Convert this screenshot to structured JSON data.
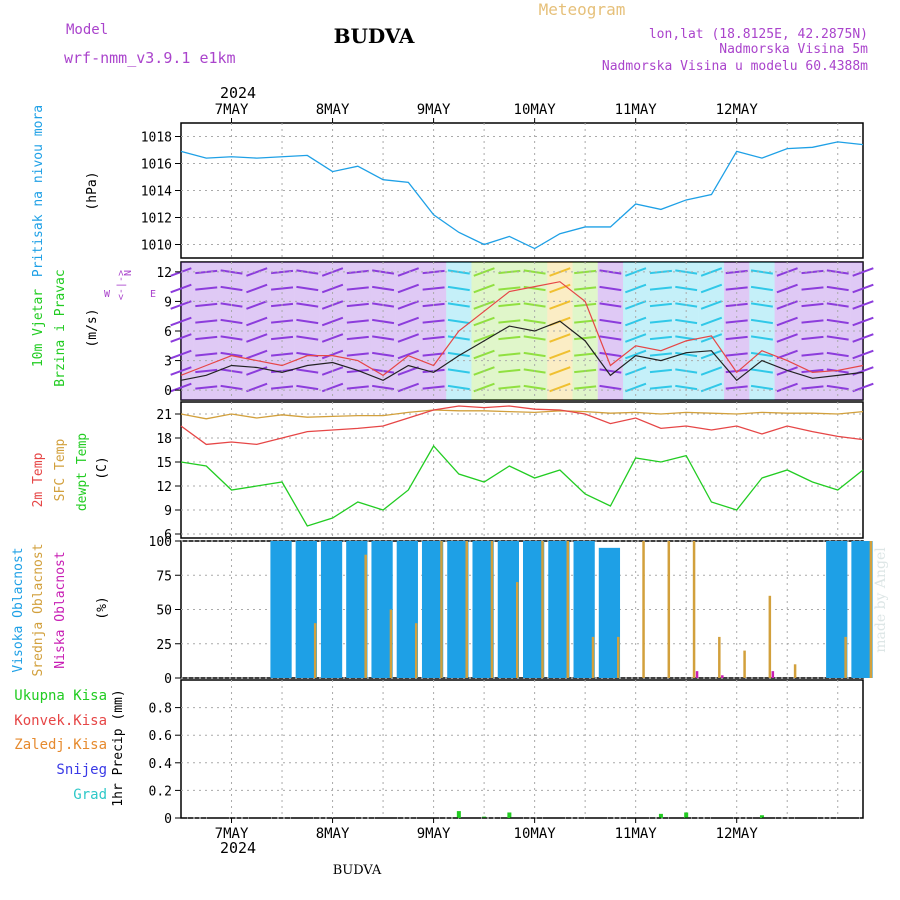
{
  "header": {
    "station": "BUDVA",
    "model_label": "Model",
    "model_name": "wrf-nmm_v3.9.1 e1km",
    "meteogram_label": "Meteogram",
    "coords": "lon,lat (18.8125E, 42.2875N)",
    "elevation": "Nadmorska Visina 5m",
    "model_elevation": "Nadmorska Visina u modelu 60.4388m",
    "year": "2024",
    "footer_station": "BUDVA",
    "watermark": "made by Angel"
  },
  "colors": {
    "pressure": "#1ea0e6",
    "t2m": "#e64646",
    "sfc": "#d2a03c",
    "dew": "#22cc22",
    "high_cloud": "#1ea0e6",
    "mid_cloud": "#d2a03c",
    "low_cloud": "#c81eb4",
    "header_purple": "#aa44cc",
    "meteogram": "#e6c07a"
  },
  "chart_data": [
    {
      "type": "line",
      "panel": "pressure",
      "ylabel": [
        "Pritisak na nivou mora",
        "(hPa)"
      ],
      "ylim": [
        1009,
        1019
      ],
      "yticks": [
        "1010",
        "1012",
        "1014",
        "1016",
        "1018"
      ],
      "x_unit": "hours since 7MAY 00 UTC",
      "x": [
        -12,
        -6,
        0,
        6,
        12,
        18,
        24,
        30,
        36,
        42,
        48,
        54,
        60,
        66,
        72,
        78,
        84,
        90,
        96,
        102,
        108,
        114,
        120,
        126,
        132,
        138,
        144,
        150
      ],
      "series": [
        {
          "name": "Pritisak na nivou mora",
          "values": [
            1016.9,
            1016.4,
            1016.5,
            1016.4,
            1016.5,
            1016.6,
            1015.4,
            1015.8,
            1014.8,
            1014.6,
            1012.2,
            1010.9,
            1010.0,
            1010.6,
            1009.7,
            1010.8,
            1011.3,
            1011.3,
            1013.0,
            1012.6,
            1013.3,
            1013.7,
            1016.9,
            1016.4,
            1017.1,
            1017.2,
            1017.6,
            1017.4
          ]
        }
      ]
    },
    {
      "type": "line",
      "panel": "wind",
      "ylabel": [
        "10m Vjetar",
        "Brzina i Pravac",
        "(m/s)"
      ],
      "compass": "N",
      "ylim": [
        -1,
        13
      ],
      "yticks": [
        "0",
        "3",
        "6",
        "9",
        "12"
      ],
      "x_unit": "hours since 7MAY 00 UTC",
      "x": [
        -12,
        -6,
        0,
        6,
        12,
        18,
        24,
        30,
        36,
        42,
        48,
        54,
        60,
        66,
        72,
        78,
        84,
        90,
        96,
        102,
        108,
        114,
        120,
        126,
        132,
        138,
        144,
        150
      ],
      "series": [
        {
          "name": "10m Vjetar",
          "values": [
            1.0,
            1.5,
            2.5,
            2.3,
            1.8,
            2.5,
            2.8,
            2.0,
            1.0,
            2.5,
            1.8,
            3.5,
            5.0,
            6.5,
            6.0,
            7.0,
            5.0,
            1.5,
            3.5,
            3.0,
            3.8,
            4.0,
            1.0,
            3.0,
            2.0,
            1.2,
            1.5,
            1.8
          ]
        },
        {
          "name": "gust",
          "values": [
            1.5,
            2.5,
            3.5,
            3.0,
            2.5,
            3.5,
            3.5,
            3.0,
            1.5,
            3.5,
            2.5,
            6.0,
            8.0,
            10.0,
            10.5,
            11.0,
            9.0,
            2.5,
            4.5,
            4.0,
            5.0,
            5.5,
            1.8,
            4.0,
            3.0,
            1.8,
            2.0,
            2.5
          ]
        }
      ]
    },
    {
      "type": "line",
      "panel": "temperature",
      "ylabel": [
        "2m Temp",
        "SFC Temp",
        "dewpt Temp",
        "(C)"
      ],
      "ylim": [
        5.5,
        22.5
      ],
      "yticks": [
        "6",
        "9",
        "12",
        "15",
        "18",
        "21"
      ],
      "x_unit": "hours since 7MAY 00 UTC",
      "x": [
        -12,
        -6,
        0,
        6,
        12,
        18,
        24,
        30,
        36,
        42,
        48,
        54,
        60,
        66,
        72,
        78,
        84,
        90,
        96,
        102,
        108,
        114,
        120,
        126,
        132,
        138,
        144,
        150
      ],
      "series": [
        {
          "name": "2m Temp",
          "values": [
            19.5,
            17.2,
            17.5,
            17.2,
            18.0,
            18.8,
            19.0,
            19.2,
            19.5,
            20.5,
            21.5,
            22.0,
            21.8,
            22.0,
            21.6,
            21.5,
            21.0,
            19.8,
            20.5,
            19.2,
            19.5,
            19.0,
            19.5,
            18.5,
            19.5,
            18.8,
            18.2,
            17.8
          ]
        },
        {
          "name": "SFC Temp",
          "values": [
            21.0,
            20.4,
            21.0,
            20.5,
            20.9,
            20.6,
            20.7,
            20.8,
            20.8,
            21.2,
            21.5,
            21.4,
            21.4,
            21.3,
            21.2,
            21.4,
            21.3,
            21.1,
            21.2,
            21.0,
            21.2,
            21.1,
            21.0,
            21.2,
            21.1,
            21.1,
            21.0,
            21.3
          ]
        },
        {
          "name": "dewpt Temp",
          "values": [
            15.0,
            14.5,
            11.5,
            12.0,
            12.5,
            7.0,
            8.0,
            10.0,
            9.0,
            11.5,
            17.0,
            13.5,
            12.5,
            14.5,
            13.0,
            14.0,
            11.0,
            9.5,
            15.5,
            15.0,
            15.8,
            10.0,
            9.0,
            13.0,
            14.0,
            12.5,
            11.5,
            14.0
          ]
        }
      ]
    },
    {
      "type": "bar",
      "panel": "cloud",
      "ylabel": [
        "Visoka Oblacnost",
        "Srednja Oblacnost",
        "Niska Oblacnost",
        "(%)"
      ],
      "ylim": [
        0,
        100
      ],
      "yticks": [
        "0",
        "25",
        "50",
        "75",
        "100"
      ],
      "x_unit": "hours since 7MAY 00 UTC",
      "x": [
        -12,
        -6,
        0,
        6,
        12,
        18,
        24,
        30,
        36,
        42,
        48,
        54,
        60,
        66,
        72,
        78,
        84,
        90,
        96,
        102,
        108,
        114,
        120,
        126,
        132,
        138,
        144,
        150
      ],
      "series": [
        {
          "name": "Visoka Oblacnost",
          "values": [
            0,
            0,
            0,
            0,
            100,
            100,
            100,
            100,
            100,
            100,
            100,
            100,
            100,
            100,
            100,
            100,
            100,
            95,
            0,
            0,
            0,
            0,
            0,
            0,
            0,
            0,
            100,
            100
          ]
        },
        {
          "name": "Srednja Oblacnost",
          "values": [
            0,
            0,
            0,
            0,
            0,
            40,
            0,
            90,
            50,
            40,
            100,
            100,
            100,
            70,
            100,
            100,
            30,
            30,
            100,
            100,
            100,
            30,
            20,
            60,
            10,
            0,
            30,
            100
          ]
        },
        {
          "name": "Niska Oblacnost",
          "values": [
            0,
            0,
            0,
            0,
            0,
            0,
            0,
            0,
            0,
            0,
            0,
            0,
            0,
            0,
            0,
            0,
            0,
            0,
            0,
            0,
            5,
            2,
            0,
            5,
            0,
            0,
            0,
            0
          ]
        }
      ]
    },
    {
      "type": "bar",
      "panel": "precip",
      "ylabel": [
        "1hr Precip (mm)"
      ],
      "legend": [
        "Ukupna Kisa",
        "Konvek.Kisa",
        "Zaledj.Kisa",
        "Snijeg",
        "Grad"
      ],
      "legend_colors": [
        "#22cc22",
        "#e64646",
        "#e68a2e",
        "#3a3ae6",
        "#2ec8c8"
      ],
      "ylim": [
        0,
        1.0
      ],
      "yticks": [
        "0",
        "0.2",
        "0.4",
        "0.6",
        "0.8"
      ],
      "x_unit": "hours since 7MAY 00 UTC",
      "x": [
        -12,
        -6,
        0,
        6,
        12,
        18,
        24,
        30,
        36,
        42,
        48,
        54,
        60,
        66,
        72,
        78,
        84,
        90,
        96,
        102,
        108,
        114,
        120,
        126,
        132,
        138,
        144,
        150
      ],
      "series": [
        {
          "name": "Ukupna Kisa",
          "values": [
            0,
            0,
            0,
            0,
            0,
            0,
            0,
            0,
            0,
            0,
            0,
            0.05,
            0.01,
            0.04,
            0,
            0,
            0,
            0,
            0,
            0.03,
            0.04,
            0,
            0,
            0.02,
            0,
            0,
            0,
            0
          ]
        }
      ]
    }
  ],
  "time_axis": {
    "labels": [
      "7MAY",
      "8MAY",
      "9MAY",
      "10MAY",
      "11MAY",
      "12MAY"
    ],
    "label_hours": [
      0,
      24,
      48,
      72,
      96,
      120
    ],
    "xlim": [
      -12,
      150
    ],
    "grid_hours": [
      0,
      12,
      24,
      36,
      48,
      60,
      72,
      84,
      96,
      108,
      120,
      132,
      144
    ]
  }
}
